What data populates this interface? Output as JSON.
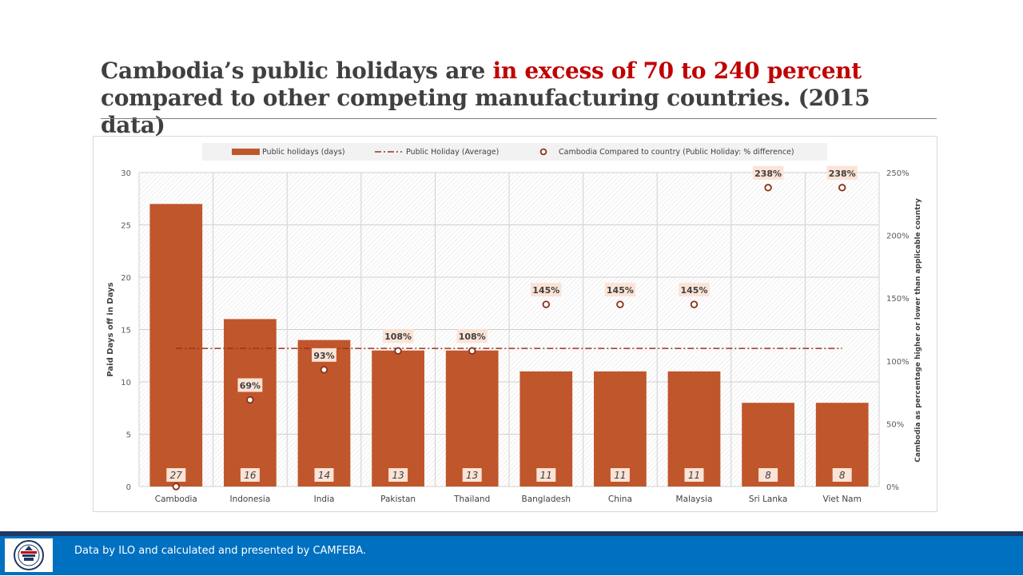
{
  "title": {
    "part1": "Cambodia’s public holidays are ",
    "highlight": "in excess of 70 to 240 percent",
    "part2": "compared to other competing manufacturing countries. (2015 data)"
  },
  "footer": {
    "text": "Data by ILO and calculated and presented by CAMFEBA."
  },
  "logo": {
    "icon": "camfeba-logo-icon"
  },
  "colors": {
    "bar": "#c0562b",
    "average_line": "#a0301e",
    "point_stroke": "#8b2f1a",
    "label_bg": "#fbe3d6",
    "highlight": "#c00000",
    "footer": "#0070c0"
  },
  "chart_data": {
    "type": "bar",
    "categories": [
      "Cambodia",
      "Indonesia",
      "India",
      "Pakistan",
      "Thailand",
      "Bangladesh",
      "China",
      "Malaysia",
      "Sri Lanka",
      "Viet Nam"
    ],
    "series": [
      {
        "name": "Public holidays (days)",
        "type": "bar",
        "axis": "left",
        "values": [
          27,
          16,
          14,
          13,
          13,
          11,
          11,
          11,
          8,
          8
        ],
        "labels": [
          "27",
          "16",
          "14",
          "13",
          "13",
          "11",
          "11",
          "11",
          "8",
          "8"
        ]
      },
      {
        "name": "Public Holiday (Average)",
        "type": "line",
        "style": "dash-dot",
        "axis": "left",
        "values": [
          13.2,
          13.2,
          13.2,
          13.2,
          13.2,
          13.2,
          13.2,
          13.2,
          13.2,
          13.2
        ]
      },
      {
        "name": "Cambodia Compared to country (Public Holiday: % difference)",
        "type": "scatter",
        "axis": "right",
        "values": [
          0,
          69,
          93,
          108,
          108,
          145,
          145,
          145,
          238,
          238
        ],
        "labels": [
          null,
          "69%",
          "93%",
          "108%",
          "108%",
          "145%",
          "145%",
          "145%",
          "238%",
          "238%"
        ]
      }
    ],
    "ylabel": "Paid Days off in Days",
    "y2label": "Cambodia as percentage higher or lower than applicable country",
    "ylim": [
      0,
      30
    ],
    "yticks": [
      "0",
      "5",
      "10",
      "15",
      "20",
      "25",
      "30"
    ],
    "y2lim": [
      0,
      250
    ],
    "y2ticks": [
      "0%",
      "50%",
      "100%",
      "150%",
      "200%",
      "250%"
    ],
    "legend_position": "top"
  }
}
